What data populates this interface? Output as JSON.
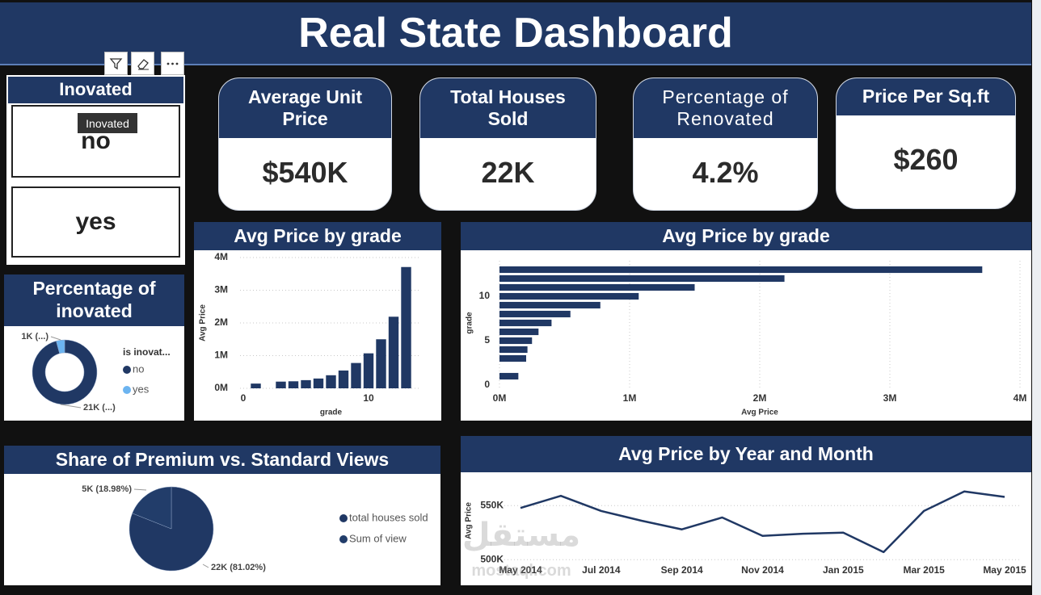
{
  "header": {
    "title": "Real State Dashboard"
  },
  "slicer": {
    "title": "Inovated",
    "tooltip": "Inovated",
    "items": [
      "no",
      "yes"
    ]
  },
  "kpis": [
    {
      "title": [
        "Average Unit",
        "Price"
      ],
      "value": "$540K"
    },
    {
      "title": [
        "Total Houses",
        "Sold"
      ],
      "value": "22K"
    },
    {
      "title": [
        "Percentage of",
        "Renovated"
      ],
      "value": "4.2%"
    },
    {
      "title": [
        "Price Per Sq.ft"
      ],
      "value": "$260"
    }
  ],
  "watermark": {
    "logo": "مستقل",
    "site": "mostaql.com"
  },
  "chart_data": [
    {
      "type": "bar",
      "title": "Avg Price by grade",
      "x_label": "grade",
      "y_label": "Avg Price",
      "x": [
        1,
        3,
        4,
        5,
        6,
        7,
        8,
        9,
        10,
        11,
        12,
        13
      ],
      "values": [
        145000,
        205000,
        215000,
        250000,
        300000,
        400000,
        545000,
        775000,
        1070000,
        1500000,
        2190000,
        3710000
      ],
      "color": "#203864",
      "xlim": [
        0,
        14
      ],
      "xticks": [
        0,
        10
      ],
      "ylim": [
        0,
        4000000
      ],
      "yticks": [
        {
          "value": 0,
          "label": "0M"
        },
        {
          "value": 1000000,
          "label": "1M"
        },
        {
          "value": 2000000,
          "label": "2M"
        },
        {
          "value": 3000000,
          "label": "3M"
        },
        {
          "value": 4000000,
          "label": "4M"
        }
      ],
      "grid": true
    },
    {
      "type": "hbar",
      "title": "Avg Price by grade",
      "x_label": "Avg Price",
      "y_label": "grade",
      "y": [
        1,
        3,
        4,
        5,
        6,
        7,
        8,
        9,
        10,
        11,
        12,
        13
      ],
      "values": [
        145000,
        205000,
        215000,
        250000,
        300000,
        400000,
        545000,
        775000,
        1070000,
        1500000,
        2190000,
        3710000
      ],
      "color": "#203864",
      "ylim": [
        0,
        14
      ],
      "yticks": [
        0,
        5,
        10
      ],
      "xlim": [
        0,
        4000000
      ],
      "xticks": [
        {
          "value": 0,
          "label": "0M"
        },
        {
          "value": 1000000,
          "label": "1M"
        },
        {
          "value": 2000000,
          "label": "2M"
        },
        {
          "value": 3000000,
          "label": "3M"
        },
        {
          "value": 4000000,
          "label": "4M"
        }
      ],
      "grid": true
    },
    {
      "type": "donut",
      "title": "Percentage of inovated",
      "legend_title": "is inovat...",
      "categories": [
        "no",
        "yes"
      ],
      "values": [
        20699,
        914
      ],
      "value_labels": [
        "21K (...)",
        "1K (...)"
      ],
      "colors": [
        "#203864",
        "#6cb4f0"
      ],
      "legend": "right"
    },
    {
      "type": "pie",
      "title": "Share of Premium vs. Standard Views",
      "categories": [
        "total houses sold",
        "Sum of view"
      ],
      "values": [
        21613,
        5064
      ],
      "value_labels": [
        "22K (81.02%)",
        "5K (18.98%)"
      ],
      "colors": [
        "#203864",
        "#223d6a"
      ],
      "legend": "right"
    },
    {
      "type": "line",
      "title": "Avg Price by Year and Month",
      "y_label": "Avg Price",
      "categories": [
        "May 2014",
        null,
        "Jul 2014",
        null,
        "Sep 2014",
        null,
        "Nov 2014",
        null,
        "Jan 2015",
        null,
        "Mar 2015",
        null,
        "May 2015"
      ],
      "values": [
        547800,
        559000,
        545000,
        536000,
        528000,
        539000,
        522000,
        524000,
        525000,
        507000,
        545000,
        563000,
        558000
      ],
      "color": "#203864",
      "ylim": [
        495000,
        577000
      ],
      "yticks": [
        {
          "value": 500000,
          "label": "500K"
        },
        {
          "value": 550000,
          "label": "550K"
        }
      ],
      "grid": true
    }
  ]
}
